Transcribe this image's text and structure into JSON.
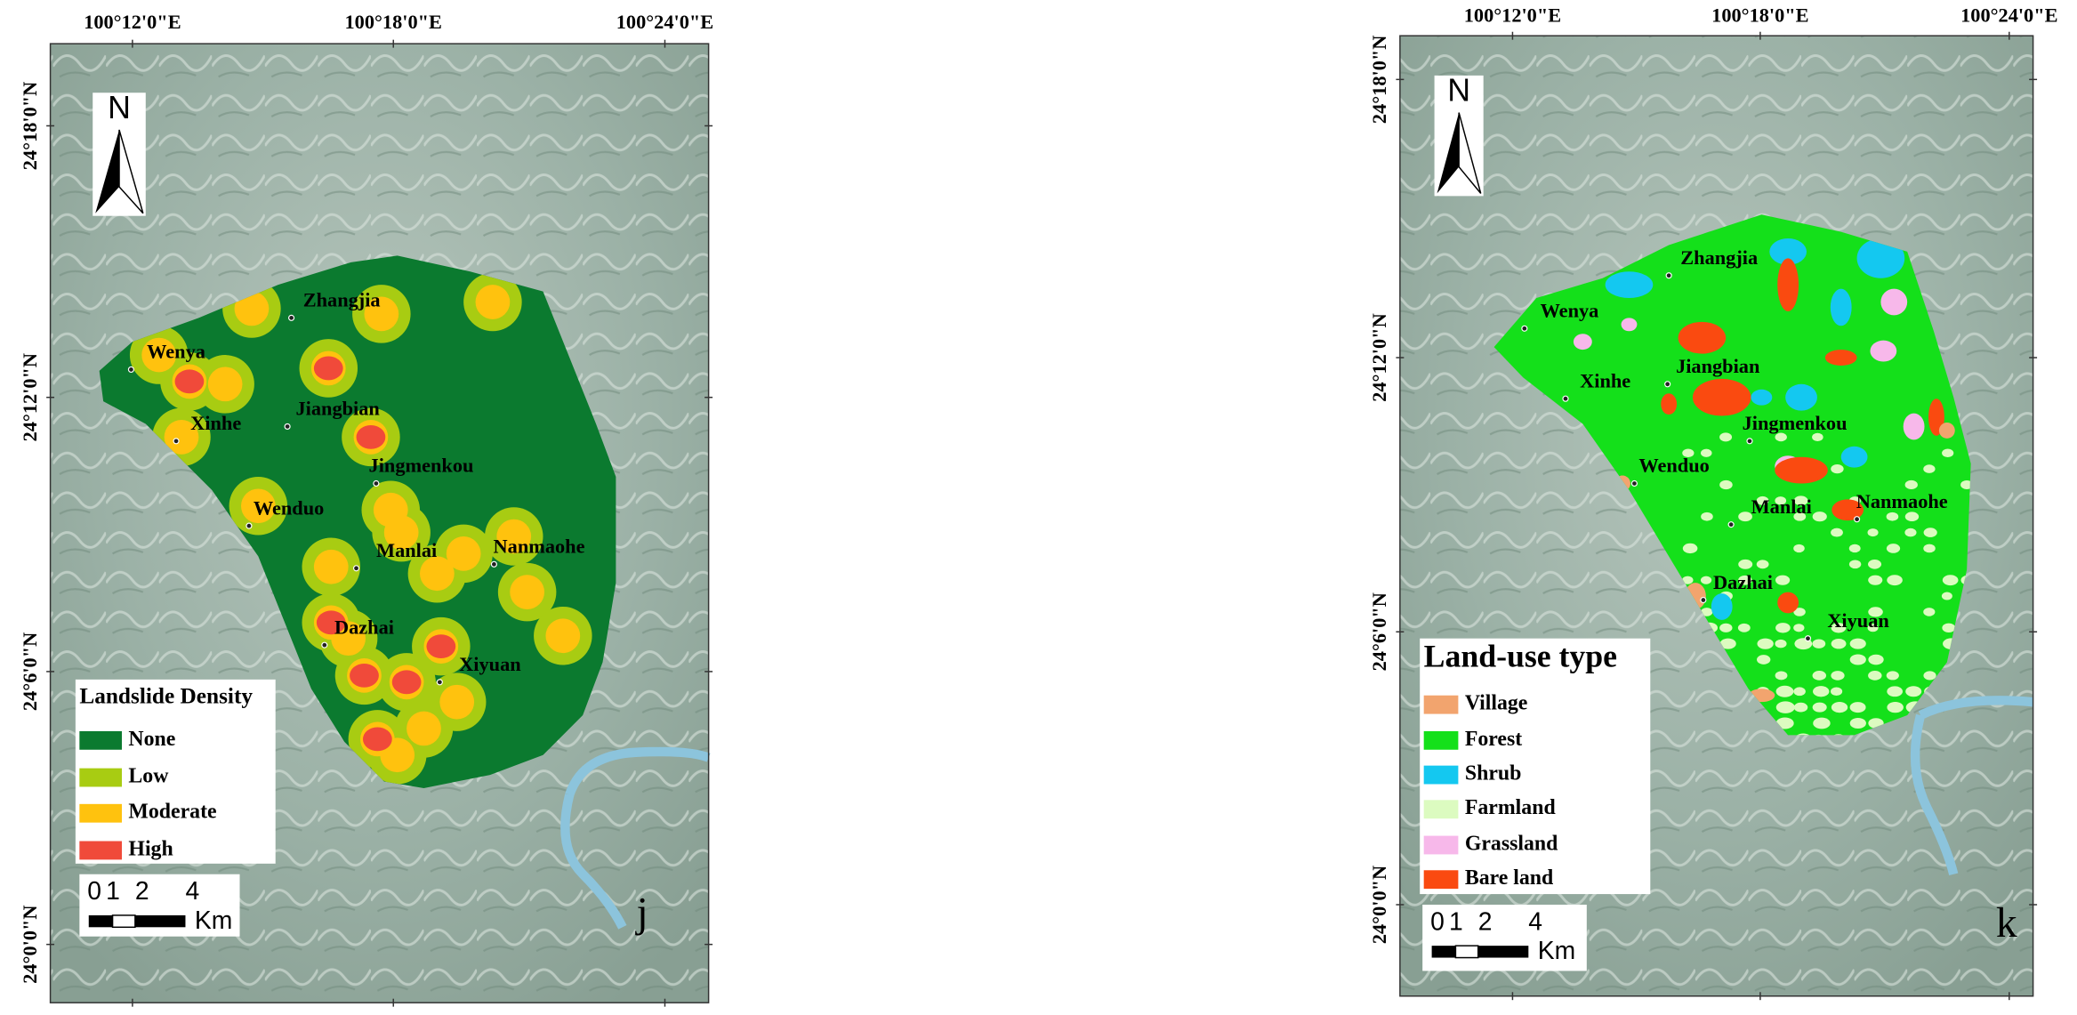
{
  "panels": [
    {
      "x_labels": [
        "100°12'0\"E",
        "100°18'0\"E",
        "100°24'0\"E"
      ],
      "y_labels": [
        "24°18'0\"N",
        "24°12'0\"N",
        "24°6'0\"N",
        "24°0'0\"N"
      ],
      "places": [
        "Zhangjia",
        "Wenya",
        "Xinhe",
        "Jiangbian",
        "Jingmenkou",
        "Wenduo",
        "Manlai",
        "Nanmaohe",
        "Dazhai",
        "Xiyuan"
      ],
      "legend": {
        "title": "Landslide Density",
        "items": [
          {
            "label": "None",
            "color": "#0b7a2f"
          },
          {
            "label": "Low",
            "color": "#a8cc12"
          },
          {
            "label": "Moderate",
            "color": "#ffc20e"
          },
          {
            "label": "High",
            "color": "#f04a3a"
          }
        ]
      },
      "scale_bar": {
        "labels": [
          "0",
          "1",
          "2",
          "4"
        ],
        "unit": "Km"
      },
      "north": "N",
      "letter": "j"
    },
    {
      "x_labels": [
        "100°12'0\"E",
        "100°18'0\"E",
        "100°24'0\"E"
      ],
      "y_labels": [
        "24°18'0\"N",
        "24°12'0\"N",
        "24°6'0\"N",
        "24°0'0\"N"
      ],
      "places": [
        "Zhangjia",
        "Wenya",
        "Xinhe",
        "Jiangbian",
        "Jingmenkou",
        "Wenduo",
        "Manlai",
        "Nanmaohe",
        "Dazhai",
        "Xiyuan"
      ],
      "legend": {
        "title": "Land-use type",
        "items": [
          {
            "label": "Village",
            "color": "#f2a46e"
          },
          {
            "label": "Forest",
            "color": "#14e01a"
          },
          {
            "label": "Shrub",
            "color": "#14c8f0"
          },
          {
            "label": "Farmland",
            "color": "#dcfbc0"
          },
          {
            "label": "Grassland",
            "color": "#f7b8ea"
          },
          {
            "label": "Bare land",
            "color": "#fa4a10"
          }
        ]
      },
      "scale_bar": {
        "labels": [
          "0",
          "1",
          "2",
          "4"
        ],
        "unit": "Km"
      },
      "north": "N",
      "letter": "k"
    }
  ]
}
